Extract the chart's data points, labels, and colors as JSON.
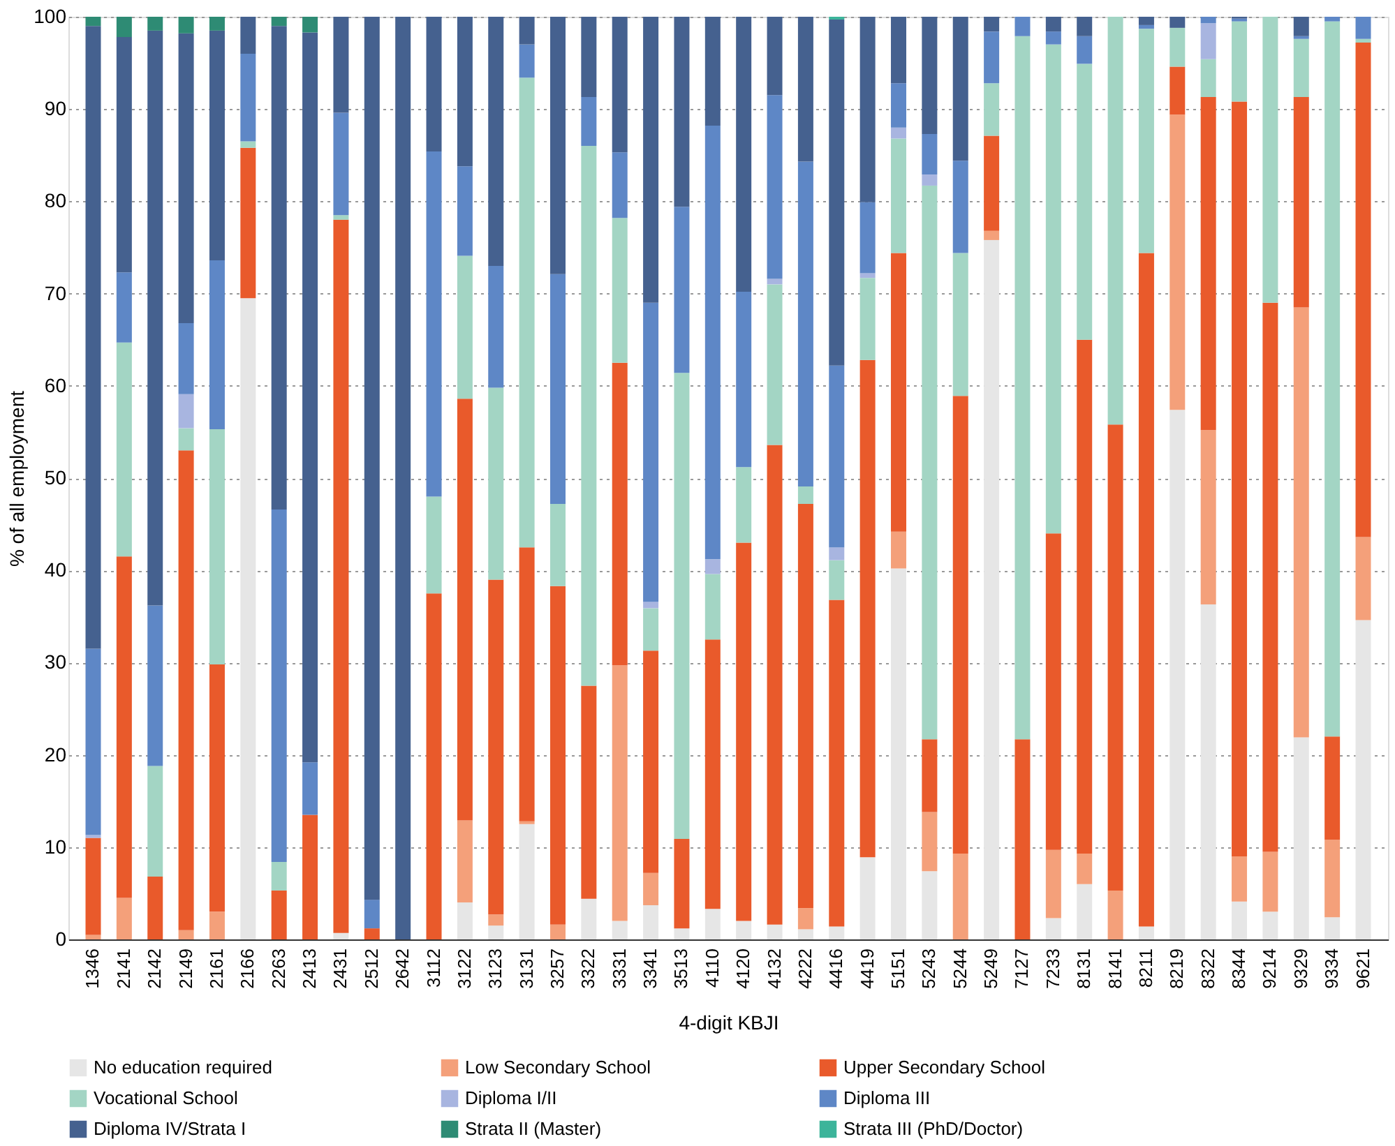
{
  "chart_data": {
    "type": "bar",
    "stacked": true,
    "xlabel": "4-digit KBJI",
    "ylabel": "% of all employment",
    "categories": [
      "1346",
      "2141",
      "2142",
      "2149",
      "2161",
      "2166",
      "2263",
      "2413",
      "2431",
      "2512",
      "2642",
      "3112",
      "3122",
      "3123",
      "3131",
      "3257",
      "3322",
      "3331",
      "3341",
      "3513",
      "4110",
      "4120",
      "4132",
      "4222",
      "4416",
      "4419",
      "5151",
      "5243",
      "5244",
      "5249",
      "7127",
      "7233",
      "8131",
      "8141",
      "8211",
      "8219",
      "8322",
      "8344",
      "9214",
      "9329",
      "9334",
      "9621"
    ],
    "ylim": [
      0,
      100
    ],
    "yticks": [
      0,
      10,
      20,
      30,
      40,
      50,
      60,
      70,
      80,
      90,
      100
    ],
    "grid": "y",
    "legend": "bottom",
    "series": [
      {
        "name": "No education required",
        "color": "#e6e6e6",
        "values": [
          null,
          null,
          null,
          null,
          null,
          69.5,
          null,
          null,
          0.7,
          null,
          null,
          null,
          4,
          1.5,
          12.5,
          null,
          4.4,
          2,
          3.7,
          1.2,
          3.3,
          2,
          1.6,
          1.1,
          1.4,
          8.9,
          40.2,
          7.4,
          null,
          75.8,
          null,
          2.3,
          6,
          null,
          1.4,
          57.4,
          36.3,
          4.1,
          3,
          21.9,
          2.4,
          34.6
        ]
      },
      {
        "name": "Low Secondary School",
        "color": "#f4a07a",
        "values": [
          0.5,
          4.5,
          null,
          1,
          3,
          null,
          null,
          null,
          null,
          null,
          null,
          null,
          8.9,
          1.2,
          0.3,
          1.6,
          null,
          27.7,
          3.5,
          null,
          null,
          null,
          null,
          2.3,
          null,
          null,
          4,
          6.4,
          9.3,
          1,
          null,
          7.4,
          3.3,
          5.3,
          null,
          32,
          18.9,
          4.9,
          6.5,
          46.6,
          8.4,
          9
        ]
      },
      {
        "name": "Upper Secondary School",
        "color": "#e95a2b",
        "values": [
          10.5,
          37,
          6.8,
          52,
          26.8,
          16.3,
          5.3,
          13.5,
          77.3,
          1.2,
          null,
          37.5,
          45.7,
          36.3,
          29.7,
          36.7,
          23.1,
          32.8,
          24.1,
          9.7,
          29.2,
          41,
          52,
          43.8,
          35.4,
          53.9,
          30.2,
          7.9,
          49.6,
          10.3,
          21.7,
          34.3,
          55.7,
          50.5,
          73,
          5.2,
          36.1,
          81.8,
          59.5,
          22.8,
          11.2,
          53.6
        ]
      },
      {
        "name": "Vocational School",
        "color": "#a3d5c4",
        "values": [
          null,
          23.2,
          12,
          2.4,
          25.5,
          0.7,
          3.1,
          null,
          0.5,
          null,
          null,
          10.5,
          15.5,
          20.8,
          50.9,
          8.9,
          58.5,
          15.7,
          4.6,
          50.5,
          7.1,
          8.2,
          17.4,
          1.9,
          4.3,
          8.9,
          12.4,
          60,
          15.5,
          5.7,
          76.2,
          53,
          29.9,
          44.2,
          24.3,
          4.2,
          4.1,
          8.7,
          31,
          6.3,
          77.5,
          0.4
        ]
      },
      {
        "name": "Diploma I/II",
        "color": "#a8b5e0",
        "values": [
          0.3,
          null,
          null,
          3.7,
          null,
          null,
          null,
          null,
          null,
          null,
          null,
          null,
          null,
          null,
          null,
          null,
          null,
          null,
          0.7,
          null,
          1.6,
          null,
          0.6,
          null,
          1.4,
          0.5,
          1.2,
          1.2,
          null,
          null,
          null,
          null,
          null,
          null,
          null,
          null,
          3.9,
          null,
          null,
          null,
          null,
          null
        ]
      },
      {
        "name": "Diploma III",
        "color": "#5e87c6",
        "values": [
          20.2,
          7.6,
          17.4,
          7.7,
          18.3,
          9.5,
          38.2,
          5.7,
          11.1,
          3.1,
          null,
          37.4,
          9.7,
          13.2,
          3.6,
          24.9,
          5.3,
          7.1,
          32.4,
          18,
          47,
          19,
          19.9,
          35.2,
          19.7,
          7.7,
          4.8,
          4.4,
          10,
          5.6,
          2.1,
          1.4,
          3,
          null,
          0.4,
          null,
          0.7,
          0.3,
          null,
          0.3,
          0.5,
          2.4
        ]
      },
      {
        "name": "Diploma IV/Strata I",
        "color": "#45618f",
        "values": [
          67.5,
          25.5,
          62.3,
          31.4,
          24.9,
          4,
          52.4,
          79.1,
          10.4,
          95.7,
          100,
          14.6,
          16.2,
          27,
          3,
          27.9,
          8.7,
          14.7,
          31,
          20.6,
          11.8,
          29.8,
          8.5,
          15.7,
          37.5,
          20.1,
          7.2,
          12.7,
          15.6,
          1.6,
          null,
          1.6,
          2.1,
          null,
          0.9,
          1.2,
          null,
          0.2,
          null,
          2.1,
          null,
          null
        ]
      },
      {
        "name": "Strata II (Master)",
        "color": "#2e8b74",
        "values": [
          1,
          2.2,
          1.5,
          1.8,
          1.5,
          null,
          1,
          1.7,
          null,
          null,
          null,
          null,
          null,
          null,
          null,
          null,
          null,
          null,
          null,
          null,
          null,
          null,
          null,
          null,
          null,
          null,
          null,
          null,
          null,
          null,
          null,
          null,
          null,
          null,
          null,
          null,
          null,
          null,
          null,
          null,
          null,
          null
        ]
      },
      {
        "name": "Strata III (PhD/Doctor)",
        "color": "#3cb49a",
        "values": [
          null,
          null,
          null,
          null,
          null,
          null,
          null,
          null,
          null,
          null,
          null,
          null,
          null,
          null,
          null,
          null,
          null,
          null,
          null,
          null,
          null,
          null,
          null,
          null,
          0.3,
          null,
          null,
          null,
          null,
          null,
          null,
          null,
          null,
          null,
          null,
          null,
          null,
          null,
          null,
          null,
          null,
          null
        ]
      }
    ]
  }
}
